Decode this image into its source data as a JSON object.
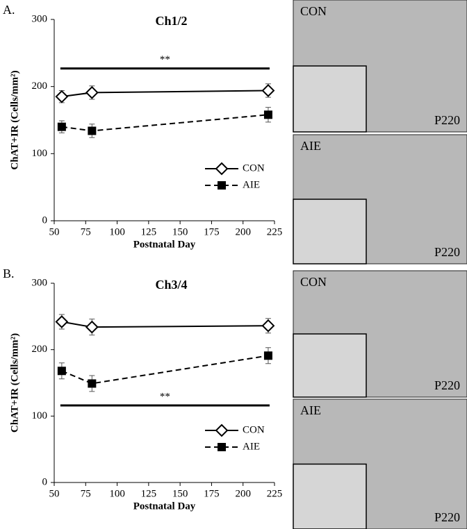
{
  "chart_data": [
    {
      "type": "line",
      "panel_label": "A.",
      "title": "Ch1/2",
      "x_label": "Postnatal Day",
      "y_label": "ChAT+IR (Cells/mm²)",
      "xlim": [
        50,
        225
      ],
      "xticks": [
        50,
        75,
        100,
        125,
        150,
        175,
        200,
        225
      ],
      "ylim": [
        0,
        300
      ],
      "yticks": [
        0,
        100,
        200,
        300
      ],
      "legend": "lower right",
      "series": [
        {
          "name": "CON",
          "color": "#000000",
          "linestyle": "solid",
          "marker": "diamond-open",
          "x": [
            56,
            80,
            220
          ],
          "values": [
            185,
            191,
            194
          ],
          "errors": [
            9,
            10,
            10
          ]
        },
        {
          "name": "AIE",
          "color": "#000000",
          "linestyle": "dashed",
          "marker": "square",
          "x": [
            56,
            80,
            220
          ],
          "values": [
            140,
            134,
            158
          ],
          "errors": [
            9,
            10,
            11
          ]
        }
      ],
      "significance": {
        "label": "**",
        "y": 227,
        "x": [
          56,
          220
        ]
      },
      "images": [
        {
          "label": "CON",
          "inset": "P220"
        },
        {
          "label": "AIE",
          "inset": "P220"
        }
      ]
    },
    {
      "type": "line",
      "panel_label": "B.",
      "title": "Ch3/4",
      "x_label": "Postnatal Day",
      "y_label": "ChAT+IR (Cells/mm²)",
      "xlim": [
        50,
        225
      ],
      "xticks": [
        50,
        75,
        100,
        125,
        150,
        175,
        200,
        225
      ],
      "ylim": [
        0,
        300
      ],
      "yticks": [
        0,
        100,
        200,
        300
      ],
      "legend": "lower right",
      "series": [
        {
          "name": "CON",
          "color": "#000000",
          "linestyle": "solid",
          "marker": "diamond-open",
          "x": [
            56,
            80,
            220
          ],
          "values": [
            242,
            234,
            236
          ],
          "errors": [
            11,
            12,
            11
          ]
        },
        {
          "name": "AIE",
          "color": "#000000",
          "linestyle": "dashed",
          "marker": "square",
          "x": [
            56,
            80,
            220
          ],
          "values": [
            168,
            149,
            191
          ],
          "errors": [
            12,
            12,
            12
          ]
        }
      ],
      "significance": {
        "label": "**",
        "y": 116,
        "x": [
          56,
          220
        ]
      },
      "images": [
        {
          "label": "CON",
          "inset": "P220"
        },
        {
          "label": "AIE",
          "inset": "P220"
        }
      ]
    }
  ]
}
